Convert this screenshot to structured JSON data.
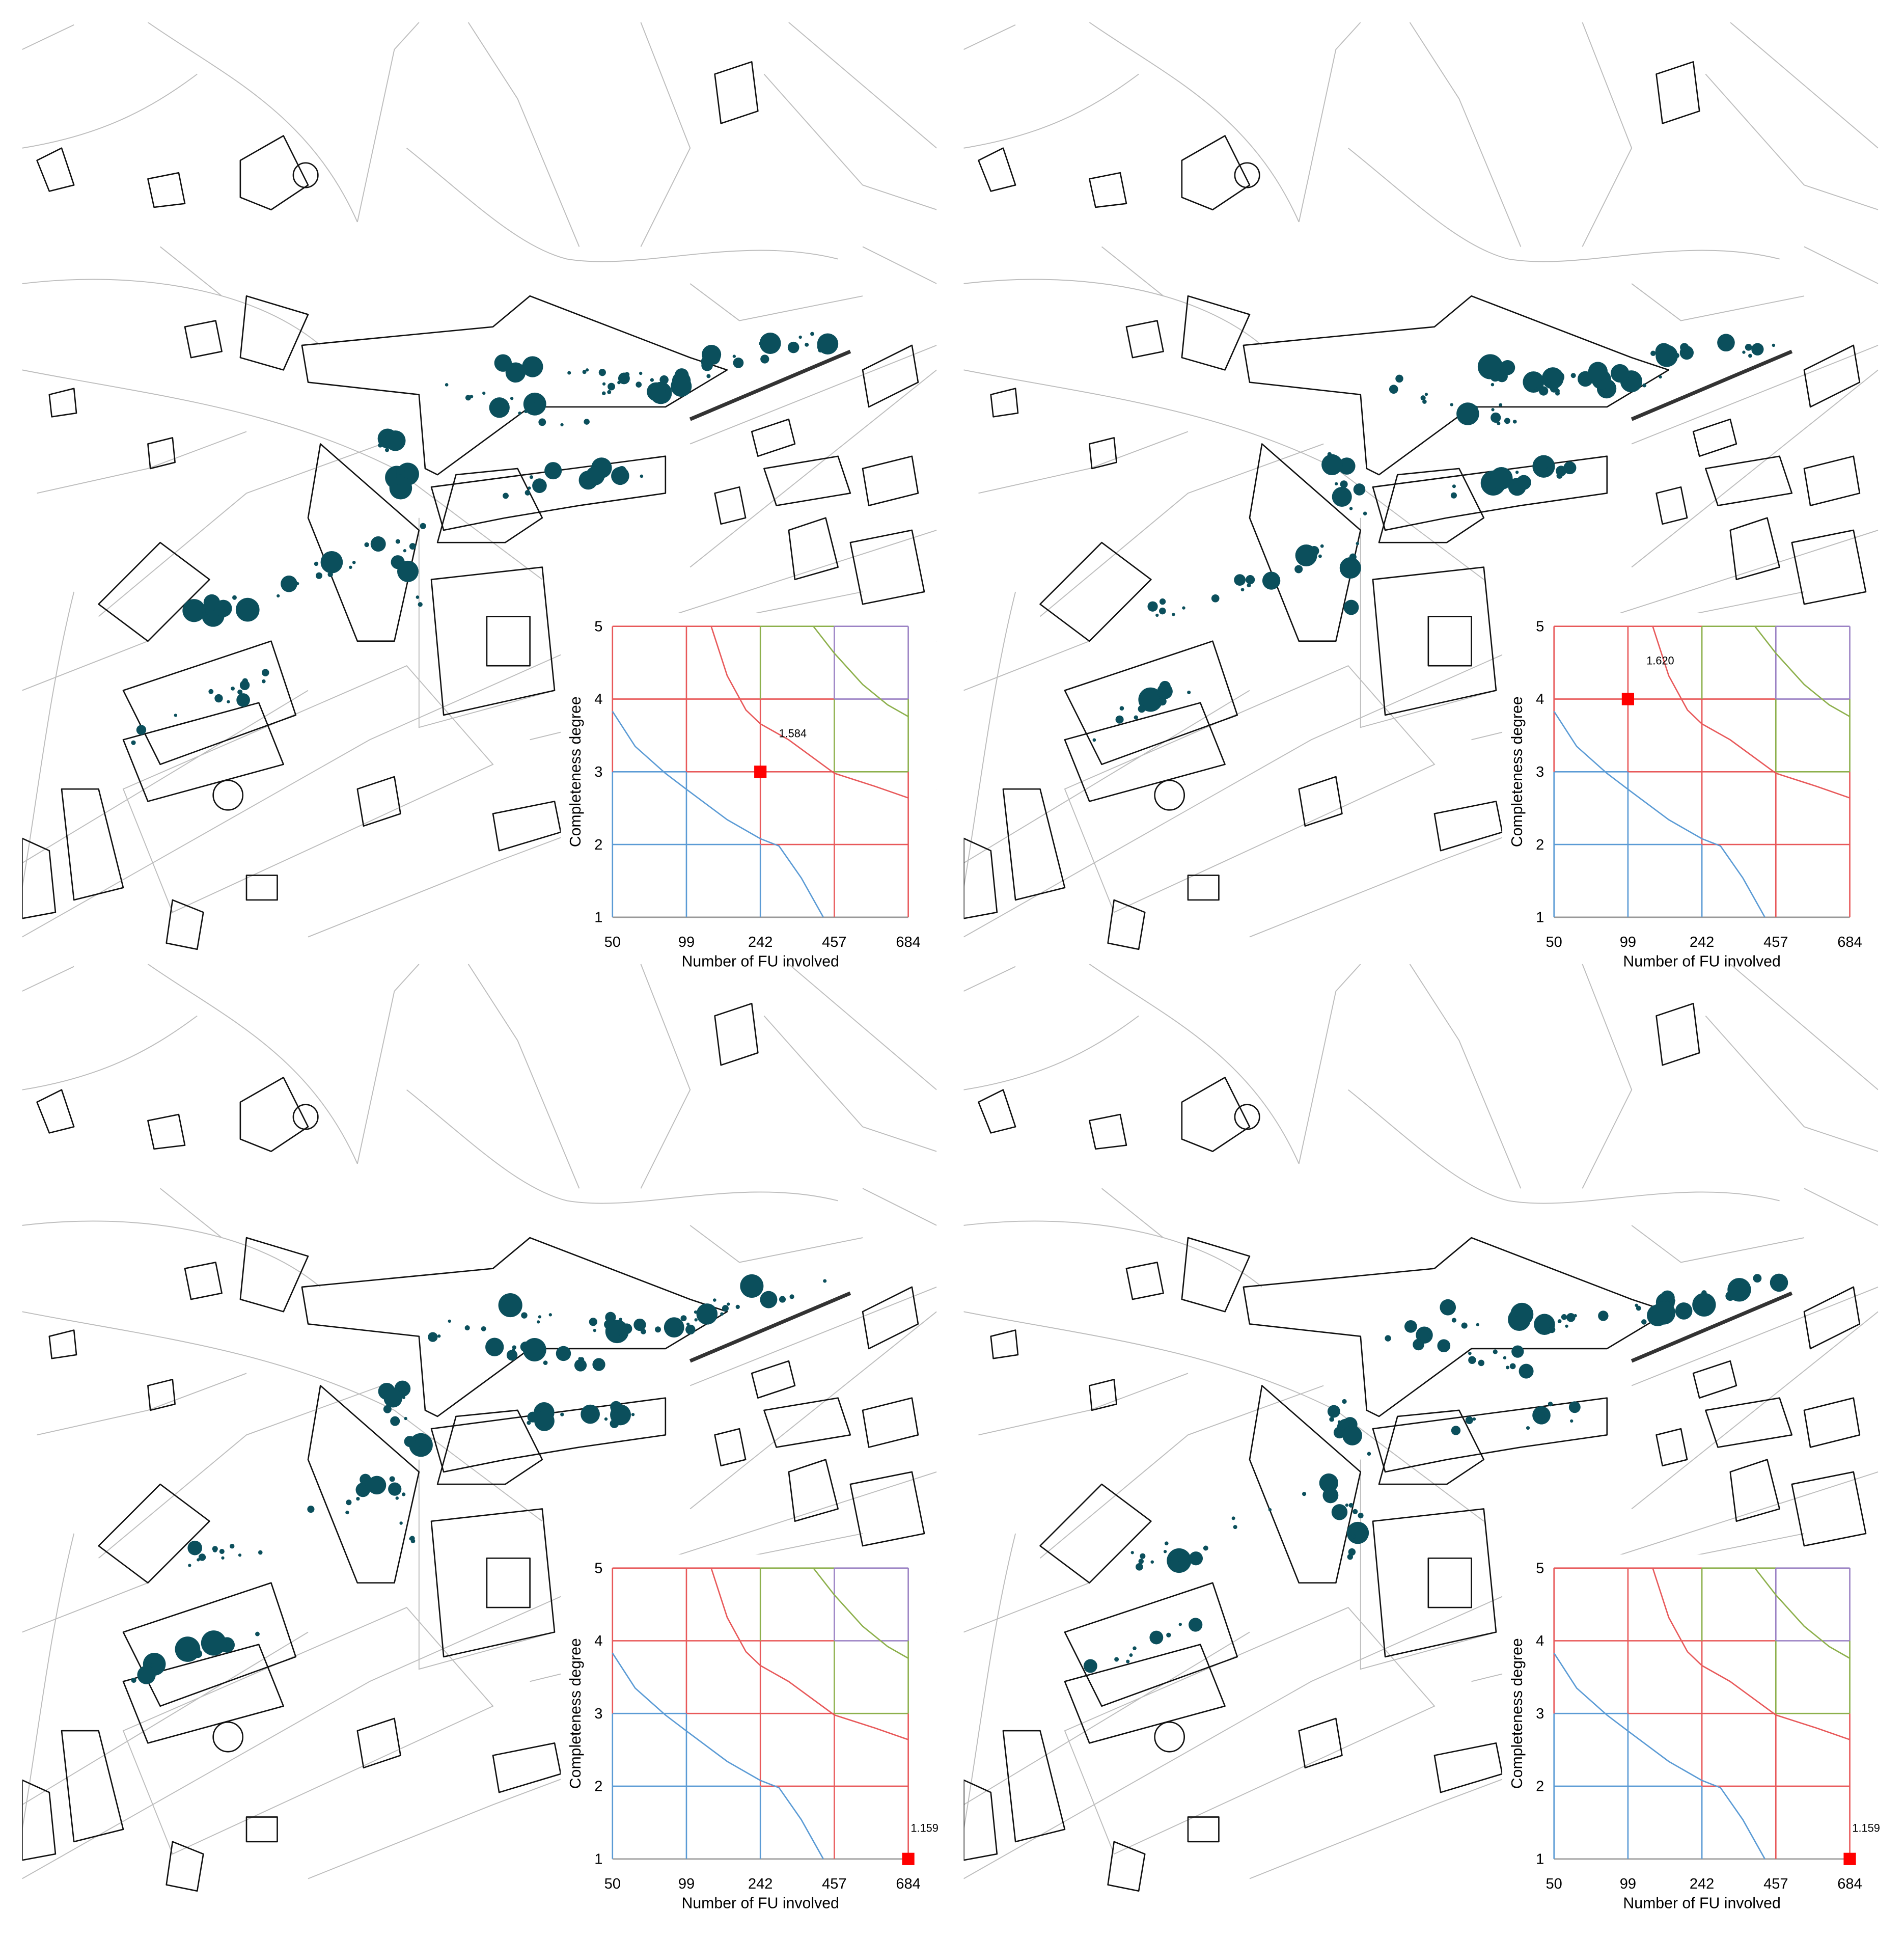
{
  "chart_data": [
    {
      "type": "line",
      "x_label": "Number of FU involved",
      "y_label": "Completeness degree",
      "xticks": [
        50,
        99,
        242,
        457,
        684
      ],
      "xlim": [
        50,
        684
      ],
      "ylim": [
        1,
        5
      ],
      "yticks": [
        1,
        2,
        3,
        4,
        5
      ],
      "series": [
        {
          "color": "#5b9bd5",
          "x": [
            50,
            65,
            85,
            99,
            178,
            242,
            296,
            361,
            425
          ],
          "values": [
            3.83,
            3.35,
            2.98,
            2.76,
            2.34,
            2.08,
            1.98,
            1.54,
            1
          ]
        },
        {
          "color": "#e8595a",
          "x": [
            147,
            178,
            214,
            242,
            324,
            457,
            582,
            684
          ],
          "values": [
            5,
            4.32,
            3.85,
            3.66,
            3.44,
            2.98,
            2.8,
            2.64
          ]
        },
        {
          "color": "#8db04c",
          "x": [
            396,
            457,
            544,
            621,
            684
          ],
          "values": [
            5,
            4.63,
            4.2,
            3.92,
            3.76
          ]
        }
      ],
      "point": {
        "x": 242,
        "y": 3,
        "color": "#ff0000",
        "label": "1.584"
      }
    },
    {
      "type": "line",
      "x_label": "Number of FU involved",
      "y_label": "Completeness degree",
      "xticks": [
        50,
        99,
        242,
        457,
        684
      ],
      "xlim": [
        50,
        684
      ],
      "ylim": [
        1,
        5
      ],
      "yticks": [
        1,
        2,
        3,
        4,
        5
      ],
      "series": [
        {
          "color": "#5b9bd5",
          "x": [
            50,
            65,
            85,
            99,
            178,
            242,
            296,
            361,
            425
          ],
          "values": [
            3.83,
            3.35,
            2.98,
            2.76,
            2.34,
            2.08,
            1.98,
            1.54,
            1
          ]
        },
        {
          "color": "#e8595a",
          "x": [
            147,
            178,
            214,
            242,
            324,
            457,
            582,
            684
          ],
          "values": [
            5,
            4.32,
            3.85,
            3.66,
            3.44,
            2.98,
            2.8,
            2.64
          ]
        },
        {
          "color": "#8db04c",
          "x": [
            396,
            457,
            544,
            621,
            684
          ],
          "values": [
            5,
            4.63,
            4.2,
            3.92,
            3.76
          ]
        }
      ],
      "point": {
        "x": 99,
        "y": 4,
        "color": "#ff0000",
        "label": "1.620"
      }
    },
    {
      "type": "line",
      "x_label": "Number of FU involved",
      "y_label": "Completeness degree",
      "xticks": [
        50,
        99,
        242,
        457,
        684
      ],
      "xlim": [
        50,
        684
      ],
      "ylim": [
        1,
        5
      ],
      "yticks": [
        1,
        2,
        3,
        4,
        5
      ],
      "series": [
        {
          "color": "#5b9bd5",
          "x": [
            50,
            65,
            85,
            99,
            178,
            242,
            296,
            361,
            425
          ],
          "values": [
            3.83,
            3.35,
            2.98,
            2.76,
            2.34,
            2.08,
            1.98,
            1.54,
            1
          ]
        },
        {
          "color": "#e8595a",
          "x": [
            147,
            178,
            214,
            242,
            324,
            457,
            582,
            684
          ],
          "values": [
            5,
            4.32,
            3.85,
            3.66,
            3.44,
            2.98,
            2.8,
            2.64
          ]
        },
        {
          "color": "#8db04c",
          "x": [
            396,
            457,
            544,
            621,
            684
          ],
          "values": [
            5,
            4.63,
            4.2,
            3.92,
            3.76
          ]
        }
      ],
      "point": {
        "x": 684,
        "y": 1,
        "color": "#ff0000",
        "label": "1.159"
      }
    },
    {
      "type": "line",
      "x_label": "Number of FU involved",
      "y_label": "Completeness degree",
      "xticks": [
        50,
        99,
        242,
        457,
        684
      ],
      "xlim": [
        50,
        684
      ],
      "ylim": [
        1,
        5
      ],
      "yticks": [
        1,
        2,
        3,
        4,
        5
      ],
      "series": [
        {
          "color": "#5b9bd5",
          "x": [
            50,
            65,
            85,
            99,
            178,
            242,
            296,
            361,
            425
          ],
          "values": [
            3.83,
            3.35,
            2.98,
            2.76,
            2.34,
            2.08,
            1.98,
            1.54,
            1
          ]
        },
        {
          "color": "#e8595a",
          "x": [
            147,
            178,
            214,
            242,
            324,
            457,
            582,
            684
          ],
          "values": [
            5,
            4.32,
            3.85,
            3.66,
            3.44,
            2.98,
            2.8,
            2.64
          ]
        },
        {
          "color": "#8db04c",
          "x": [
            396,
            457,
            544,
            621,
            684
          ],
          "values": [
            5,
            4.63,
            4.2,
            3.92,
            3.76
          ]
        }
      ],
      "point": {
        "x": 684,
        "y": 1,
        "color": "#ff0000",
        "label": "1.159"
      }
    }
  ]
}
